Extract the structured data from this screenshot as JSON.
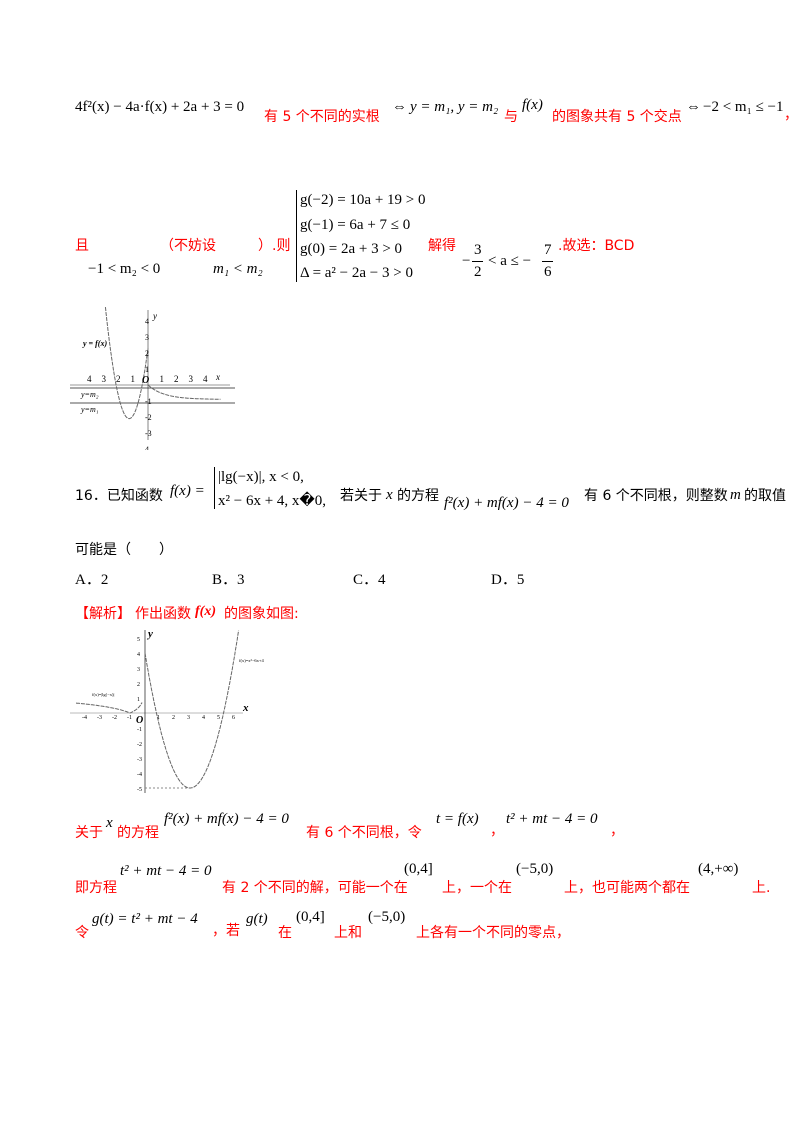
{
  "line1": {
    "eq": "4f²(x) − 4a·f(x) + 2a + 3 = 0",
    "t1": "有 5 个不同的实根",
    "iff1": "⇔",
    "eq2": "y = m₁, y = m₂",
    "t2": "与",
    "fx": "f(x)",
    "t3": "的图象共有 5 个交点",
    "iff2": "⇔",
    "cond": "−2 < m₁ ≤ −1",
    "comma": "，"
  },
  "line2": {
    "t1": "且",
    "cond1": "−1 < m₂ < 0",
    "t2": "（不妨设",
    "cond2": "m₁ < m₂",
    "t3": "）.则",
    "system": [
      "g(−2) = 10a + 19 > 0",
      "g(−1) = 6a + 7 ≤ 0",
      "g(0) = 2a + 3 > 0",
      "Δ = a² − 2a − 3 > 0"
    ],
    "t4": "解得",
    "res_left": "−",
    "res_num1": "3",
    "res_den1": "2",
    "res_mid": "< a ≤ −",
    "res_num2": "7",
    "res_den2": "6",
    "t5": ".故选：BCD"
  },
  "graph1": {
    "y_label": "y",
    "x_label": "x",
    "origin": "O",
    "curve_label": "y = f(x)",
    "line_m2": "y=m₂",
    "line_m1": "y=m₁",
    "x_ticks": [
      "4",
      "3",
      "2",
      "1",
      "1",
      "2",
      "3",
      "4"
    ],
    "y_ticks": [
      "4",
      "3",
      "2",
      "1",
      "-1",
      "-2",
      "-3",
      "4"
    ]
  },
  "q16": {
    "num": "16．已知函数",
    "fx": "f(x) =",
    "case1": "|lg(−x)|, x < 0,",
    "case2": "x² − 6x + 4, x�0,",
    "t1": "若关于",
    "x": "x",
    "t2": "的方程",
    "eq": "f²(x) + mf(x) − 4 = 0",
    "t3": "有 6 个不同根，则整数",
    "m": "m",
    "t4": "的取值",
    "t5": "可能是（　　）",
    "options": [
      "A．2",
      "B．3",
      "C．4",
      "D．5"
    ]
  },
  "analysis": {
    "label": "【解析】",
    "t1": "作出函数",
    "fx": "f(x)",
    "t2": "的图象如图:"
  },
  "graph2": {
    "y_label": "y",
    "x_label": "x",
    "origin": "O",
    "left_label": "f(x)=|lg(−x)|",
    "right_label": "f(x)=x²−6x+4",
    "x_ticks": [
      "-4",
      "-3",
      "-2",
      "-1",
      "1",
      "2",
      "3",
      "4",
      "5",
      "6"
    ],
    "y_ticks": [
      "5",
      "4",
      "3",
      "2",
      "1",
      "-1",
      "-2",
      "-3",
      "-4",
      "-5"
    ]
  },
  "sol": {
    "l1": {
      "t1": "关于",
      "x": "x",
      "t2": "的方程",
      "eq": "f²(x) + mf(x) − 4 = 0",
      "t3": "有 6 个不同根，令",
      "eq2": "t = f(x)",
      "c": "，",
      "eq3": "t² + mt − 4 = 0",
      "c2": "，"
    },
    "l2": {
      "t1": "即方程",
      "eq": "t² + mt − 4 = 0",
      "t2": "有 2 个不同的解，可能一个在",
      "i1": "(0,4]",
      "t3": "上，一个在",
      "i2": "(−5,0)",
      "t4": "上，也可能两个都在",
      "i3": "(4,+∞)",
      "t5": "上."
    },
    "l3": {
      "t1": "令",
      "eq": "g(t) = t² + mt − 4",
      "t2": "，若",
      "g": "g(t)",
      "t3": "在",
      "i1": "(0,4]",
      "t4": "上和",
      "i2": "(−5,0)",
      "t5": "上各有一个不同的零点，"
    }
  },
  "colors": {
    "answer_text": "#ff0000",
    "body_text": "#000000"
  }
}
